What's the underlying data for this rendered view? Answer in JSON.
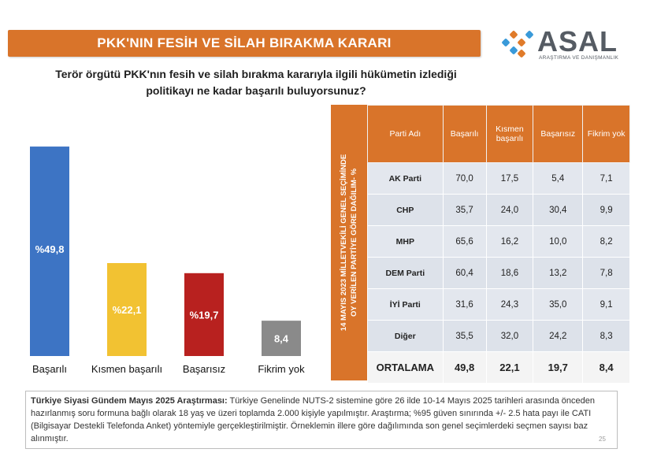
{
  "header": {
    "title": "PKK'NIN FESİH VE SİLAH BIRAKMA KARARI",
    "logo_text": "ASAL",
    "logo_subtitle": "ARAŞTIRMA VE DANIŞMANLIK"
  },
  "question": {
    "line1": "Terör örgütü PKK'nın fesih ve silah bırakma kararıyla ilgili hükümetin izlediği",
    "line2": "politikayı ne kadar başarılı buluyorsunuz?"
  },
  "chart_data": {
    "type": "bar",
    "categories": [
      "Başarılı",
      "Kısmen başarılı",
      "Başarısız",
      "Fikrim yok"
    ],
    "values": [
      49.8,
      22.1,
      19.7,
      8.4
    ],
    "value_labels": [
      "%49,8",
      "%22,1",
      "%19,7",
      "8,4"
    ],
    "colors": [
      "#3d74c4",
      "#f2c232",
      "#b8211f",
      "#8a8a8a"
    ],
    "label_colors": [
      "#ffffff",
      "#ffffff",
      "#ffffff",
      "#ffffff"
    ],
    "ylim": [
      0,
      50
    ],
    "grid": false,
    "title": "",
    "xlabel": "",
    "ylabel": ""
  },
  "table": {
    "side_label_line1": "14 MAYIS 2023 MİLLETVEKİLİ GENEL SEÇİMİNDE",
    "side_label_line2": "OY VERİLEN PARTİYE GÖRE DAĞILIM- %",
    "headers": [
      "Parti Adı",
      "Başarılı",
      "Kısmen başarılı",
      "Başarısız",
      "Fikrim yok"
    ],
    "rows": [
      {
        "party": "AK Parti",
        "values": [
          "70,0",
          "17,5",
          "5,4",
          "7,1"
        ]
      },
      {
        "party": "CHP",
        "values": [
          "35,7",
          "24,0",
          "30,4",
          "9,9"
        ]
      },
      {
        "party": "MHP",
        "values": [
          "65,6",
          "16,2",
          "10,0",
          "8,2"
        ]
      },
      {
        "party": "DEM Parti",
        "values": [
          "60,4",
          "18,6",
          "13,2",
          "7,8"
        ]
      },
      {
        "party": "İYİ Parti",
        "values": [
          "31,6",
          "24,3",
          "35,0",
          "9,1"
        ]
      },
      {
        "party": "Diğer",
        "values": [
          "35,5",
          "32,0",
          "24,2",
          "8,3"
        ]
      }
    ],
    "average": {
      "party": "ORTALAMA",
      "values": [
        "49,8",
        "22,1",
        "19,7",
        "8,4"
      ]
    }
  },
  "footnote": {
    "bold": "Türkiye Siyasi Gündem Mayıs 2025 Araştırması:",
    "text": " Türkiye Genelinde NUTS-2 sistemine göre 26 ilde 10-14 Mayıs 2025 tarihleri arasında önceden hazırlanmış soru formuna bağlı olarak 18 yaş ve üzeri toplamda 2.000 kişiyle yapılmıştır. Araştırma; %95 güven sınırında +/- 2.5 hata payı ile CATI (Bilgisayar Destekli Telefonda Anket) yöntemiyle gerçekleştirilmiştir. Örneklemin illere göre dağılımında son genel seçimlerdeki seçmen sayısı baz alınmıştır."
  },
  "page_number": "25",
  "colors": {
    "accent": "#d9742a",
    "table_row": "#e3e7ee"
  }
}
